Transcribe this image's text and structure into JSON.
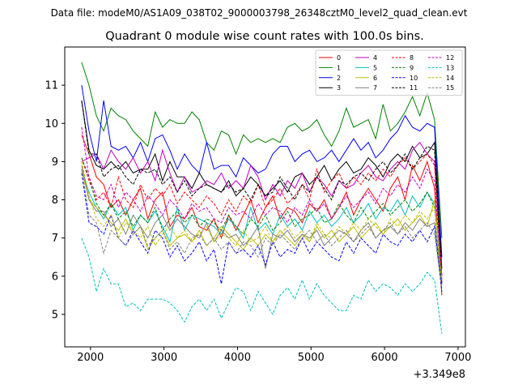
{
  "chart_data": {
    "type": "line",
    "suptitle": "Data file: modeM0/AS1A09_038T02_9000003798_26348cztM0_level2_quad_clean.evt",
    "title": "Quadrant 0 module wise count rates with 100.0s bins.",
    "xlabel": "",
    "ylabel": "",
    "x_offset_label": "+3.349e8",
    "xlim": [
      1650,
      7100
    ],
    "ylim": [
      4.15,
      12.0
    ],
    "x_ticks": [
      2000,
      3000,
      4000,
      5000,
      6000,
      7000
    ],
    "x_tick_labels": [
      "2000",
      "3000",
      "4000",
      "5000",
      "6000",
      "7000"
    ],
    "y_ticks": [
      5,
      6,
      7,
      8,
      9,
      10,
      11
    ],
    "y_tick_labels": [
      "5",
      "6",
      "7",
      "8",
      "9",
      "10",
      "11"
    ],
    "grid": false,
    "legend_position": "top-right",
    "x": [
      1880,
      1980,
      2080,
      2180,
      2280,
      2380,
      2480,
      2580,
      2680,
      2780,
      2880,
      2980,
      3080,
      3180,
      3280,
      3380,
      3480,
      3580,
      3680,
      3780,
      3880,
      3980,
      4080,
      4180,
      4280,
      4380,
      4480,
      4580,
      4680,
      4780,
      4880,
      4980,
      5080,
      5180,
      5280,
      5380,
      5480,
      5580,
      5680,
      5780,
      5880,
      5980,
      6080,
      6180,
      6280,
      6380,
      6480,
      6580,
      6680,
      6780
    ],
    "series": [
      {
        "name": "0",
        "color": "#ff0000",
        "style": "solid",
        "values": [
          9.7,
          9.2,
          8.6,
          8.4,
          7.8,
          8.0,
          7.6,
          8.0,
          8.3,
          7.5,
          8.0,
          8.2,
          7.3,
          7.6,
          7.5,
          7.8,
          7.3,
          7.2,
          7.5,
          7.0,
          7.6,
          7.2,
          7.6,
          8.0,
          7.4,
          7.8,
          8.1,
          7.5,
          7.8,
          7.7,
          7.4,
          7.9,
          7.7,
          8.0,
          7.5,
          7.8,
          8.2,
          7.6,
          8.0,
          8.3,
          8.0,
          7.7,
          8.3,
          8.6,
          8.0,
          8.9,
          8.5,
          9.0,
          8.3,
          5.5
        ]
      },
      {
        "name": "1",
        "color": "#008000",
        "style": "solid",
        "values": [
          11.6,
          11.0,
          10.2,
          9.8,
          10.4,
          10.2,
          10.1,
          9.8,
          9.6,
          9.4,
          10.3,
          9.9,
          10.1,
          10.0,
          10.0,
          10.3,
          10.1,
          9.5,
          9.3,
          9.8,
          9.7,
          9.2,
          9.7,
          9.5,
          9.6,
          9.5,
          9.6,
          9.5,
          9.9,
          10.0,
          9.8,
          9.9,
          10.1,
          9.7,
          9.4,
          9.8,
          10.4,
          9.9,
          10.0,
          10.1,
          9.6,
          10.5,
          9.8,
          10.0,
          10.3,
          10.7,
          10.2,
          10.8,
          10.1,
          7.0
        ]
      },
      {
        "name": "2",
        "color": "#0000ff",
        "style": "solid",
        "values": [
          11.0,
          9.8,
          9.0,
          10.6,
          9.4,
          9.3,
          9.4,
          9.1,
          9.5,
          9.0,
          9.6,
          9.7,
          9.3,
          8.8,
          9.2,
          8.9,
          8.7,
          9.5,
          8.8,
          8.9,
          8.9,
          8.6,
          9.1,
          8.9,
          8.7,
          8.8,
          9.2,
          9.4,
          9.4,
          9.0,
          9.2,
          9.3,
          9.0,
          9.1,
          9.3,
          9.0,
          9.3,
          9.6,
          9.3,
          9.5,
          9.1,
          9.3,
          9.6,
          9.8,
          10.2,
          9.9,
          9.8,
          10.0,
          9.9,
          6.5
        ]
      },
      {
        "name": "3",
        "color": "#000000",
        "style": "solid",
        "values": [
          10.6,
          9.3,
          8.9,
          8.8,
          9.0,
          8.8,
          9.0,
          8.7,
          8.8,
          8.8,
          9.2,
          8.5,
          9.0,
          8.6,
          8.6,
          8.3,
          8.7,
          8.4,
          8.3,
          8.2,
          8.5,
          8.1,
          8.3,
          8.6,
          8.4,
          8.1,
          8.3,
          8.5,
          8.2,
          8.6,
          8.7,
          8.4,
          8.6,
          8.9,
          8.5,
          8.8,
          9.0,
          8.7,
          8.8,
          9.1,
          8.9,
          8.6,
          9.0,
          9.2,
          9.0,
          9.4,
          9.1,
          9.2,
          9.5,
          6.2
        ]
      },
      {
        "name": "4",
        "color": "#bf00bf",
        "style": "solid",
        "values": [
          9.0,
          9.1,
          9.2,
          8.8,
          9.3,
          9.0,
          8.8,
          9.1,
          8.7,
          9.0,
          8.5,
          9.3,
          8.7,
          8.2,
          8.6,
          8.2,
          8.3,
          8.5,
          8.4,
          8.7,
          8.3,
          8.5,
          8.3,
          8.9,
          8.6,
          8.0,
          8.4,
          8.1,
          8.5,
          8.3,
          8.7,
          8.2,
          8.6,
          8.4,
          8.1,
          8.5,
          8.3,
          8.4,
          8.7,
          8.9,
          8.6,
          8.5,
          8.8,
          9.0,
          8.8,
          9.3,
          9.5,
          9.2,
          9.0,
          6.0
        ]
      },
      {
        "name": "5",
        "color": "#00bfbf",
        "style": "solid",
        "values": [
          8.8,
          8.2,
          7.8,
          7.5,
          7.9,
          7.6,
          7.8,
          7.2,
          7.6,
          7.4,
          7.7,
          7.3,
          6.9,
          7.8,
          7.2,
          7.6,
          7.5,
          7.4,
          7.3,
          7.1,
          7.5,
          7.3,
          7.0,
          7.8,
          7.2,
          7.4,
          7.1,
          7.6,
          7.3,
          7.5,
          7.2,
          7.7,
          7.4,
          7.6,
          7.3,
          7.5,
          7.8,
          7.4,
          7.6,
          7.9,
          7.5,
          7.8,
          7.7,
          8.0,
          7.6,
          8.1,
          7.8,
          8.2,
          7.9,
          5.9
        ]
      },
      {
        "name": "6",
        "color": "#bfbf00",
        "style": "solid",
        "values": [
          8.8,
          8.0,
          7.8,
          7.6,
          7.4,
          7.2,
          7.5,
          7.1,
          7.3,
          6.7,
          7.0,
          7.2,
          6.8,
          7.0,
          7.1,
          6.9,
          7.2,
          6.8,
          7.0,
          7.3,
          7.1,
          6.9,
          6.7,
          7.0,
          6.8,
          7.1,
          6.9,
          7.2,
          7.0,
          6.8,
          7.1,
          6.9,
          7.3,
          7.0,
          7.2,
          6.9,
          7.1,
          7.3,
          7.0,
          7.2,
          7.4,
          7.1,
          7.3,
          7.5,
          7.2,
          7.4,
          7.6,
          7.3,
          8.0,
          5.8
        ]
      },
      {
        "name": "7",
        "color": "#808080",
        "style": "solid",
        "values": [
          8.9,
          8.0,
          7.7,
          7.7,
          7.3,
          7.5,
          7.1,
          7.6,
          7.3,
          7.0,
          7.4,
          7.6,
          7.2,
          7.5,
          7.3,
          7.1,
          7.0,
          7.4,
          6.9,
          7.2,
          7.0,
          7.1,
          6.8,
          7.0,
          7.3,
          6.2,
          7.1,
          7.0,
          7.2,
          6.9,
          7.1,
          7.0,
          7.2,
          6.8,
          7.0,
          7.2,
          7.1,
          6.9,
          7.2,
          7.4,
          7.0,
          7.2,
          7.3,
          7.1,
          7.4,
          7.2,
          7.5,
          7.3,
          7.4,
          5.8
        ]
      },
      {
        "name": "8",
        "color": "#ff0000",
        "style": "dashed",
        "values": [
          9.1,
          8.5,
          8.0,
          8.2,
          7.8,
          8.6,
          8.0,
          7.8,
          8.4,
          8.0,
          8.3,
          8.1,
          8.4,
          7.9,
          8.2,
          8.0,
          7.8,
          8.1,
          7.9,
          7.6,
          8.0,
          7.7,
          8.1,
          7.9,
          8.4,
          7.8,
          8.0,
          8.3,
          7.9,
          8.1,
          8.4,
          8.0,
          8.8,
          8.2,
          8.5,
          8.7,
          8.3,
          8.6,
          8.4,
          8.7,
          8.5,
          8.8,
          8.6,
          8.9,
          9.1,
          8.8,
          9.0,
          9.2,
          8.9,
          6.0
        ]
      },
      {
        "name": "9",
        "color": "#008000",
        "style": "dashed",
        "values": [
          9.1,
          8.6,
          7.9,
          7.6,
          7.9,
          7.5,
          7.7,
          7.3,
          7.6,
          7.4,
          7.8,
          7.2,
          7.5,
          7.7,
          7.4,
          7.6,
          7.3,
          7.5,
          7.4,
          7.2,
          7.6,
          7.3,
          7.1,
          7.5,
          7.3,
          7.6,
          7.2,
          7.4,
          7.7,
          7.3,
          7.5,
          7.6,
          7.8,
          7.4,
          7.5,
          7.9,
          7.6,
          7.4,
          7.8,
          7.5,
          7.7,
          7.9,
          7.6,
          7.8,
          8.0,
          7.7,
          7.9,
          8.2,
          7.8,
          5.7
        ]
      },
      {
        "name": "10",
        "color": "#0000ff",
        "style": "dashed",
        "values": [
          8.7,
          7.4,
          7.3,
          7.1,
          7.6,
          7.0,
          6.8,
          7.2,
          6.9,
          6.6,
          7.2,
          7.0,
          6.5,
          6.8,
          6.4,
          6.6,
          6.9,
          6.4,
          6.7,
          5.8,
          6.9,
          6.6,
          6.7,
          6.5,
          6.8,
          6.3,
          6.9,
          6.5,
          6.7,
          6.6,
          7.0,
          6.6,
          6.9,
          6.7,
          6.5,
          6.4,
          6.9,
          6.6,
          7.0,
          6.8,
          6.6,
          7.1,
          6.9,
          6.8,
          7.1,
          6.9,
          7.2,
          6.9,
          7.3,
          5.6
        ]
      },
      {
        "name": "11",
        "color": "#000000",
        "style": "dashed",
        "values": [
          10.6,
          9.2,
          9.2,
          8.6,
          8.8,
          8.9,
          8.6,
          8.4,
          8.8,
          8.7,
          8.8,
          8.4,
          8.6,
          8.2,
          8.5,
          8.1,
          8.3,
          8.4,
          8.3,
          8.2,
          8.4,
          8.2,
          8.3,
          8.0,
          8.4,
          8.1,
          8.2,
          8.6,
          8.3,
          8.0,
          8.4,
          8.2,
          8.6,
          8.3,
          8.0,
          8.5,
          8.4,
          8.6,
          8.7,
          8.5,
          8.8,
          9.0,
          8.7,
          8.9,
          9.2,
          8.8,
          9.1,
          9.4,
          9.3,
          5.8
        ]
      },
      {
        "name": "12",
        "color": "#bf00bf",
        "style": "dashed",
        "values": [
          9.9,
          8.6,
          8.1,
          8.0,
          8.4,
          7.8,
          8.2,
          8.0,
          7.7,
          8.1,
          7.9,
          7.6,
          8.0,
          7.8,
          7.5,
          7.9,
          7.7,
          7.8,
          7.5,
          7.4,
          7.8,
          7.6,
          7.7,
          7.5,
          7.9,
          7.6,
          7.8,
          7.7,
          7.4,
          7.8,
          7.6,
          8.0,
          7.7,
          7.9,
          7.5,
          7.8,
          8.1,
          7.8,
          8.0,
          8.2,
          7.9,
          8.3,
          8.1,
          8.4,
          8.2,
          8.6,
          8.3,
          8.8,
          8.5,
          5.9
        ]
      },
      {
        "name": "13",
        "color": "#00bfbf",
        "style": "dashed",
        "values": [
          7.0,
          6.5,
          5.6,
          6.2,
          5.8,
          5.8,
          5.2,
          5.3,
          5.1,
          5.4,
          5.4,
          5.4,
          5.3,
          5.1,
          4.8,
          5.2,
          5.4,
          5.1,
          5.4,
          4.9,
          5.3,
          5.7,
          5.6,
          5.1,
          5.6,
          5.3,
          5.0,
          5.5,
          5.7,
          5.4,
          5.9,
          5.4,
          5.8,
          5.5,
          5.3,
          5.1,
          5.1,
          5.5,
          5.4,
          5.9,
          5.6,
          5.8,
          5.7,
          5.5,
          5.8,
          5.6,
          5.8,
          6.1,
          5.9,
          4.5
        ]
      },
      {
        "name": "14",
        "color": "#bfbf00",
        "style": "dashed",
        "values": [
          9.0,
          8.1,
          7.5,
          7.3,
          7.6,
          7.0,
          7.4,
          7.2,
          7.0,
          7.3,
          6.8,
          7.1,
          7.3,
          7.0,
          7.2,
          6.9,
          7.1,
          7.3,
          6.9,
          7.1,
          7.0,
          6.8,
          7.2,
          6.9,
          7.0,
          7.3,
          6.9,
          7.1,
          7.3,
          7.0,
          7.2,
          6.9,
          7.4,
          7.1,
          7.0,
          7.3,
          7.1,
          7.4,
          7.2,
          7.5,
          7.3,
          7.1,
          7.5,
          7.3,
          7.6,
          7.4,
          7.7,
          7.5,
          7.8,
          5.9
        ]
      },
      {
        "name": "15",
        "color": "#808080",
        "style": "dashed",
        "values": [
          8.8,
          7.6,
          7.4,
          6.6,
          7.2,
          7.0,
          6.8,
          7.1,
          7.3,
          6.8,
          7.0,
          7.2,
          6.7,
          6.9,
          6.6,
          7.0,
          7.1,
          6.8,
          7.0,
          6.7,
          6.9,
          6.6,
          6.9,
          6.8,
          6.5,
          7.0,
          6.8,
          7.1,
          6.9,
          6.7,
          7.0,
          7.2,
          6.9,
          7.1,
          6.8,
          7.0,
          7.2,
          6.9,
          7.1,
          7.3,
          7.0,
          7.2,
          7.4,
          7.1,
          7.3,
          7.0,
          7.2,
          7.4,
          7.1,
          5.7
        ]
      }
    ]
  }
}
